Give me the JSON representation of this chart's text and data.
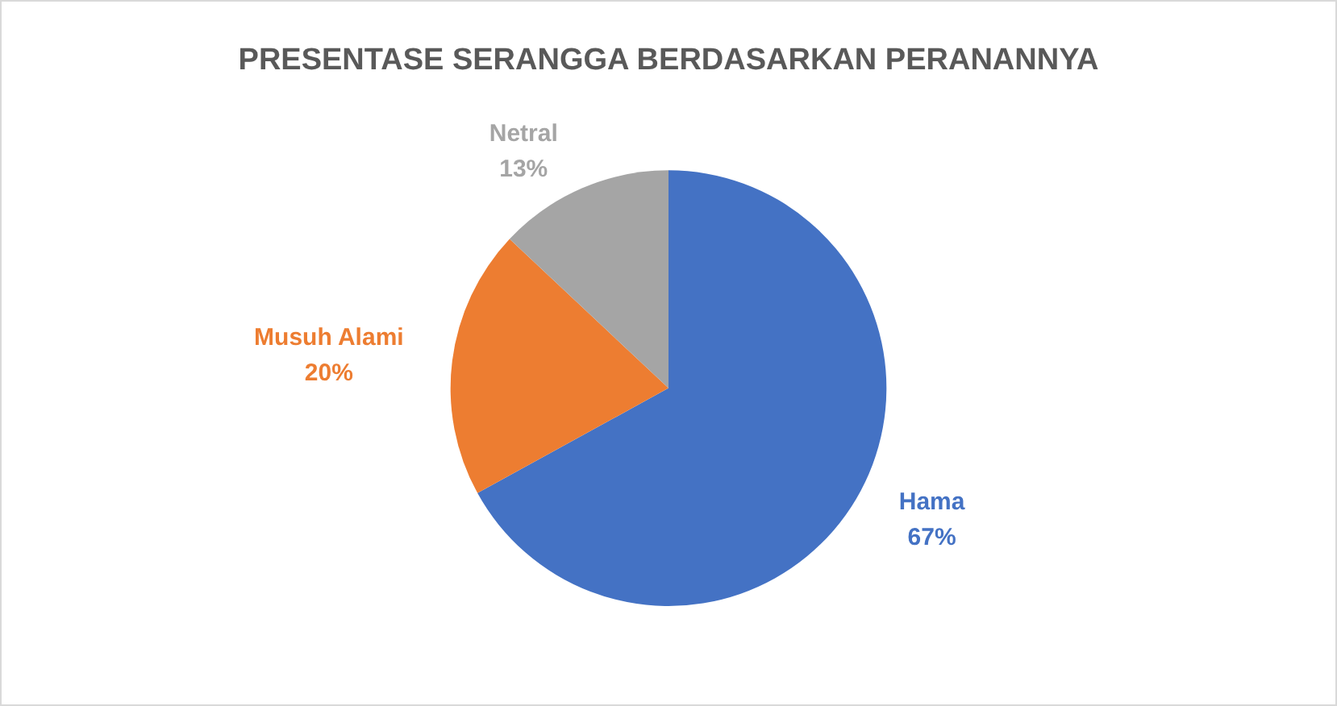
{
  "chart_data": {
    "type": "pie",
    "title": "PRESENTASE SERANGGA BERDASARKAN PERANANNYA",
    "categories": [
      "Hama",
      "Musuh Alami",
      "Netral"
    ],
    "values": [
      67,
      20,
      13
    ],
    "value_labels": [
      "67%",
      "20%",
      "13%"
    ],
    "colors": [
      "#4472c4",
      "#ed7d31",
      "#a5a5a5"
    ]
  }
}
